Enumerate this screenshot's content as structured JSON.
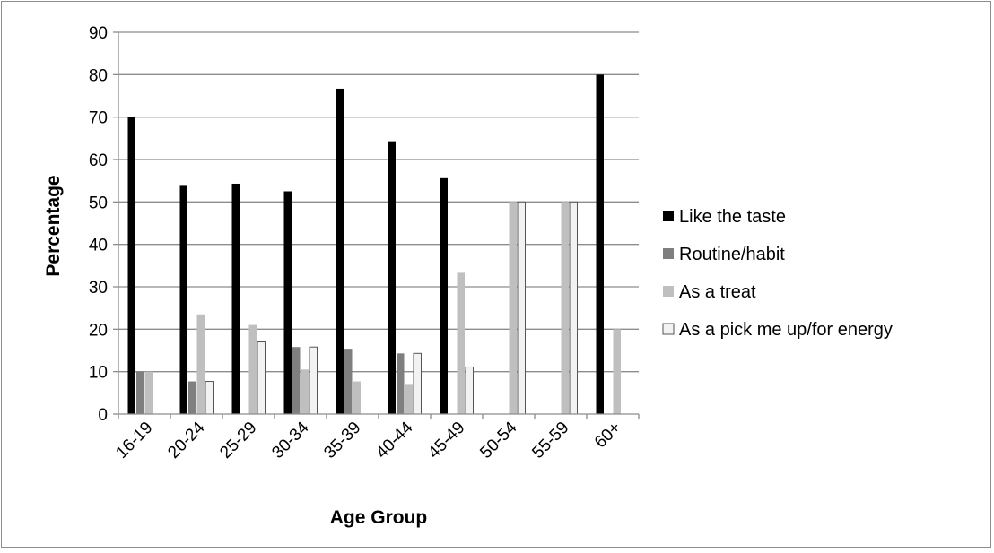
{
  "chart_data": {
    "type": "bar",
    "xlabel": "Age Group",
    "ylabel": "Percentage",
    "ylim": [
      0,
      90
    ],
    "yticks": [
      "0",
      "10",
      "20",
      "30",
      "40",
      "50",
      "60",
      "70",
      "80",
      "90"
    ],
    "grid": true,
    "legend_position": "right",
    "categories": [
      "16-19",
      "20-24",
      "25-29",
      "30-34",
      "35-39",
      "40-44",
      "45-49",
      "50-54",
      "55-59",
      "60+"
    ],
    "series": [
      {
        "name": "Like the taste",
        "color": "#000000",
        "values": [
          70,
          54,
          54.3,
          52.5,
          76.7,
          64.3,
          55.6,
          0,
          0,
          80
        ]
      },
      {
        "name": "Routine/habit",
        "color": "#7f7f7f",
        "values": [
          10,
          7.7,
          0,
          15.8,
          15.4,
          14.3,
          0,
          0,
          0,
          0
        ]
      },
      {
        "name": "As a treat",
        "color": "#bfbfbf",
        "values": [
          10,
          23.5,
          21,
          10.5,
          7.7,
          7.1,
          33.3,
          50,
          50,
          20
        ]
      },
      {
        "name": "As a pick me up/for energy",
        "color": "#f2f2f2",
        "values": [
          0,
          7.7,
          17,
          15.8,
          0,
          14.3,
          11.1,
          50,
          50,
          0
        ]
      }
    ]
  }
}
